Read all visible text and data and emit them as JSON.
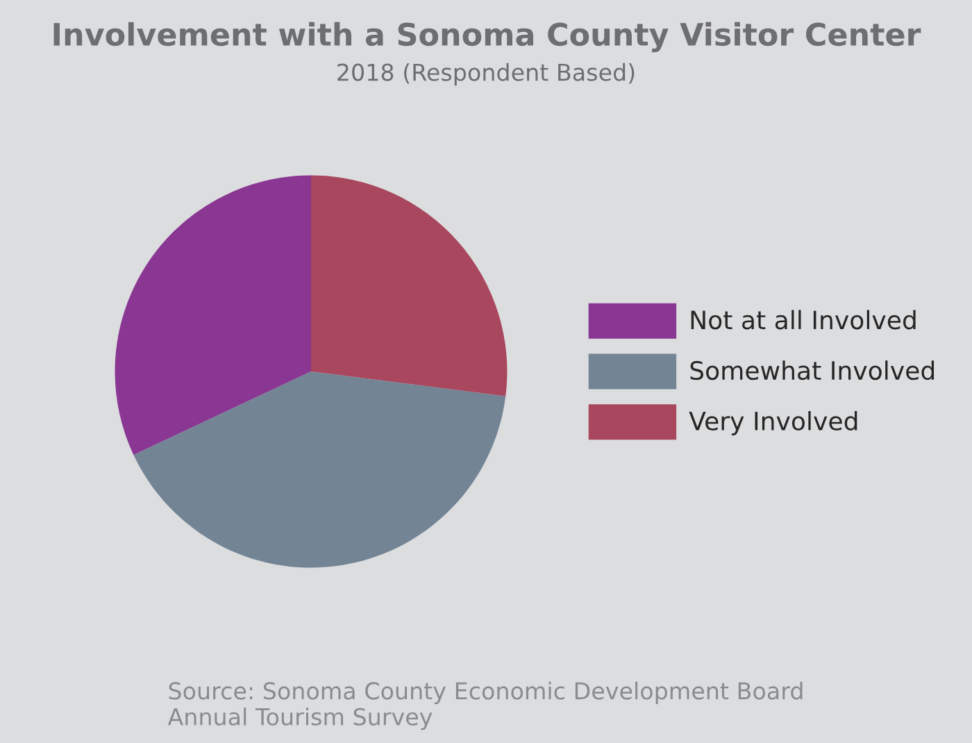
{
  "chart_data": {
    "type": "pie",
    "title": "Involvement with a Sonoma County Visitor Center",
    "subtitle": "2018 (Respondent Based)",
    "categories": [
      "Not at all Involved",
      "Somewhat Involved",
      "Very Involved"
    ],
    "values": [
      32,
      41,
      27
    ],
    "colors": [
      "#8a3793",
      "#738495",
      "#a8475e"
    ],
    "legend": "right",
    "annotations": [
      "Source: Sonoma County Economic Development Board\nAnnual Tourism Survey"
    ]
  }
}
